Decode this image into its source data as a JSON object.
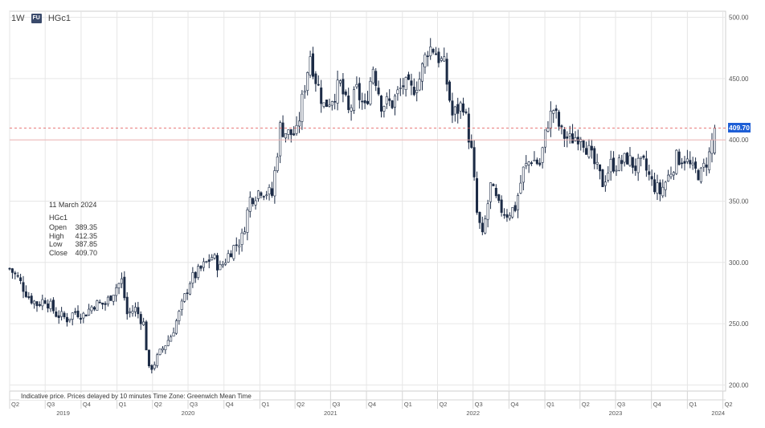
{
  "toolbar": {
    "interval": "1W",
    "badge": "FU",
    "symbol": "HGc1"
  },
  "info": {
    "date": "11 March 2024",
    "symbol": "HGc1",
    "rows": [
      {
        "label": "Open",
        "value": "389.35"
      },
      {
        "label": "High",
        "value": "412.35"
      },
      {
        "label": "Low",
        "value": "387.85"
      },
      {
        "label": "Close",
        "value": "409.70"
      }
    ]
  },
  "footer": {
    "note": "Indicative price. Prices delayed by 10 minutes   Time Zone: Greenwich Mean Time"
  },
  "last_price_label": "409.70",
  "colors": {
    "candle": "#1b2a45",
    "last_price_line": "#e05050",
    "last_price_tag": "#1e5fd6",
    "grid": "#e6e6e6"
  },
  "chart_data": {
    "type": "candlestick",
    "symbol": "HGc1",
    "interval": "1W",
    "ylim": [
      195,
      505
    ],
    "y_ticks": [
      "200.00",
      "250.00",
      "300.00",
      "350.00",
      "400.00",
      "450.00",
      "500.00"
    ],
    "y_tick_values": [
      200,
      250,
      300,
      350,
      400,
      450,
      500
    ],
    "last_price": 409.7,
    "x_start": "2019-04-01",
    "x_end": "2024-04-08",
    "quarter_ticks": [
      {
        "label": "Q2",
        "date": "2019-04-01"
      },
      {
        "label": "Q3",
        "date": "2019-07-01"
      },
      {
        "label": "Q4",
        "date": "2019-10-01"
      },
      {
        "label": "Q1",
        "date": "2020-01-01"
      },
      {
        "label": "Q2",
        "date": "2020-04-01"
      },
      {
        "label": "Q3",
        "date": "2020-07-01"
      },
      {
        "label": "Q4",
        "date": "2020-10-01"
      },
      {
        "label": "Q1",
        "date": "2021-01-01"
      },
      {
        "label": "Q2",
        "date": "2021-04-01"
      },
      {
        "label": "Q3",
        "date": "2021-07-01"
      },
      {
        "label": "Q4",
        "date": "2021-10-01"
      },
      {
        "label": "Q1",
        "date": "2022-01-01"
      },
      {
        "label": "Q2",
        "date": "2022-04-01"
      },
      {
        "label": "Q3",
        "date": "2022-07-01"
      },
      {
        "label": "Q4",
        "date": "2022-10-01"
      },
      {
        "label": "Q1",
        "date": "2023-01-01"
      },
      {
        "label": "Q2",
        "date": "2023-04-01"
      },
      {
        "label": "Q3",
        "date": "2023-07-01"
      },
      {
        "label": "Q4",
        "date": "2023-10-01"
      },
      {
        "label": "Q1",
        "date": "2024-01-01"
      },
      {
        "label": "Q2",
        "date": "2024-04-01"
      }
    ],
    "year_labels": [
      {
        "label": "2019",
        "date": "2019-08-16"
      },
      {
        "label": "2020",
        "date": "2020-07-01"
      },
      {
        "label": "2021",
        "date": "2021-07-01"
      },
      {
        "label": "2022",
        "date": "2022-07-01"
      },
      {
        "label": "2023",
        "date": "2023-07-01"
      },
      {
        "label": "2024",
        "date": "2024-03-20"
      }
    ],
    "close_anchors": [
      [
        "2019-04-01",
        295
      ],
      [
        "2019-04-22",
        287
      ],
      [
        "2019-05-20",
        272
      ],
      [
        "2019-06-10",
        266
      ],
      [
        "2019-07-01",
        270
      ],
      [
        "2019-07-29",
        258
      ],
      [
        "2019-08-26",
        254
      ],
      [
        "2019-09-16",
        260
      ],
      [
        "2019-10-07",
        257
      ],
      [
        "2019-11-04",
        266
      ],
      [
        "2019-12-02",
        266
      ],
      [
        "2019-12-30",
        280
      ],
      [
        "2020-01-13",
        285
      ],
      [
        "2020-01-27",
        258
      ],
      [
        "2020-02-17",
        262
      ],
      [
        "2020-03-09",
        250
      ],
      [
        "2020-03-23",
        212
      ],
      [
        "2020-04-06",
        218
      ],
      [
        "2020-04-27",
        230
      ],
      [
        "2020-05-18",
        240
      ],
      [
        "2020-06-08",
        258
      ],
      [
        "2020-07-06",
        285
      ],
      [
        "2020-07-27",
        292
      ],
      [
        "2020-09-01",
        305
      ],
      [
        "2020-09-21",
        295
      ],
      [
        "2020-10-19",
        310
      ],
      [
        "2020-11-16",
        320
      ],
      [
        "2020-12-07",
        352
      ],
      [
        "2021-01-04",
        360
      ],
      [
        "2021-02-01",
        355
      ],
      [
        "2021-02-22",
        410
      ],
      [
        "2021-03-15",
        405
      ],
      [
        "2021-04-05",
        405
      ],
      [
        "2021-04-26",
        445
      ],
      [
        "2021-05-10",
        470
      ],
      [
        "2021-05-24",
        450
      ],
      [
        "2021-06-14",
        428
      ],
      [
        "2021-07-05",
        435
      ],
      [
        "2021-07-26",
        445
      ],
      [
        "2021-08-16",
        422
      ],
      [
        "2021-09-06",
        440
      ],
      [
        "2021-09-27",
        425
      ],
      [
        "2021-10-18",
        460
      ],
      [
        "2021-11-08",
        430
      ],
      [
        "2021-12-06",
        430
      ],
      [
        "2022-01-03",
        445
      ],
      [
        "2022-01-24",
        440
      ],
      [
        "2022-02-14",
        450
      ],
      [
        "2022-03-07",
        475
      ],
      [
        "2022-03-21",
        475
      ],
      [
        "2022-04-18",
        460
      ],
      [
        "2022-05-09",
        420
      ],
      [
        "2022-06-06",
        430
      ],
      [
        "2022-06-27",
        390
      ],
      [
        "2022-07-11",
        340
      ],
      [
        "2022-07-25",
        320
      ],
      [
        "2022-08-15",
        362
      ],
      [
        "2022-09-05",
        345
      ],
      [
        "2022-09-26",
        340
      ],
      [
        "2022-10-17",
        345
      ],
      [
        "2022-11-07",
        375
      ],
      [
        "2022-11-28",
        385
      ],
      [
        "2022-12-19",
        380
      ],
      [
        "2023-01-09",
        415
      ],
      [
        "2023-01-23",
        425
      ],
      [
        "2023-02-13",
        405
      ],
      [
        "2023-03-06",
        400
      ],
      [
        "2023-04-03",
        405
      ],
      [
        "2023-04-24",
        390
      ],
      [
        "2023-05-15",
        375
      ],
      [
        "2023-05-29",
        365
      ],
      [
        "2023-06-19",
        380
      ],
      [
        "2023-07-10",
        380
      ],
      [
        "2023-07-31",
        385
      ],
      [
        "2023-08-21",
        378
      ],
      [
        "2023-09-11",
        380
      ],
      [
        "2023-10-02",
        365
      ],
      [
        "2023-10-23",
        357
      ],
      [
        "2023-11-13",
        370
      ],
      [
        "2023-12-04",
        385
      ],
      [
        "2023-12-25",
        385
      ],
      [
        "2024-01-15",
        375
      ],
      [
        "2024-02-05",
        372
      ],
      [
        "2024-02-26",
        388
      ],
      [
        "2024-03-11",
        409.7
      ]
    ]
  }
}
